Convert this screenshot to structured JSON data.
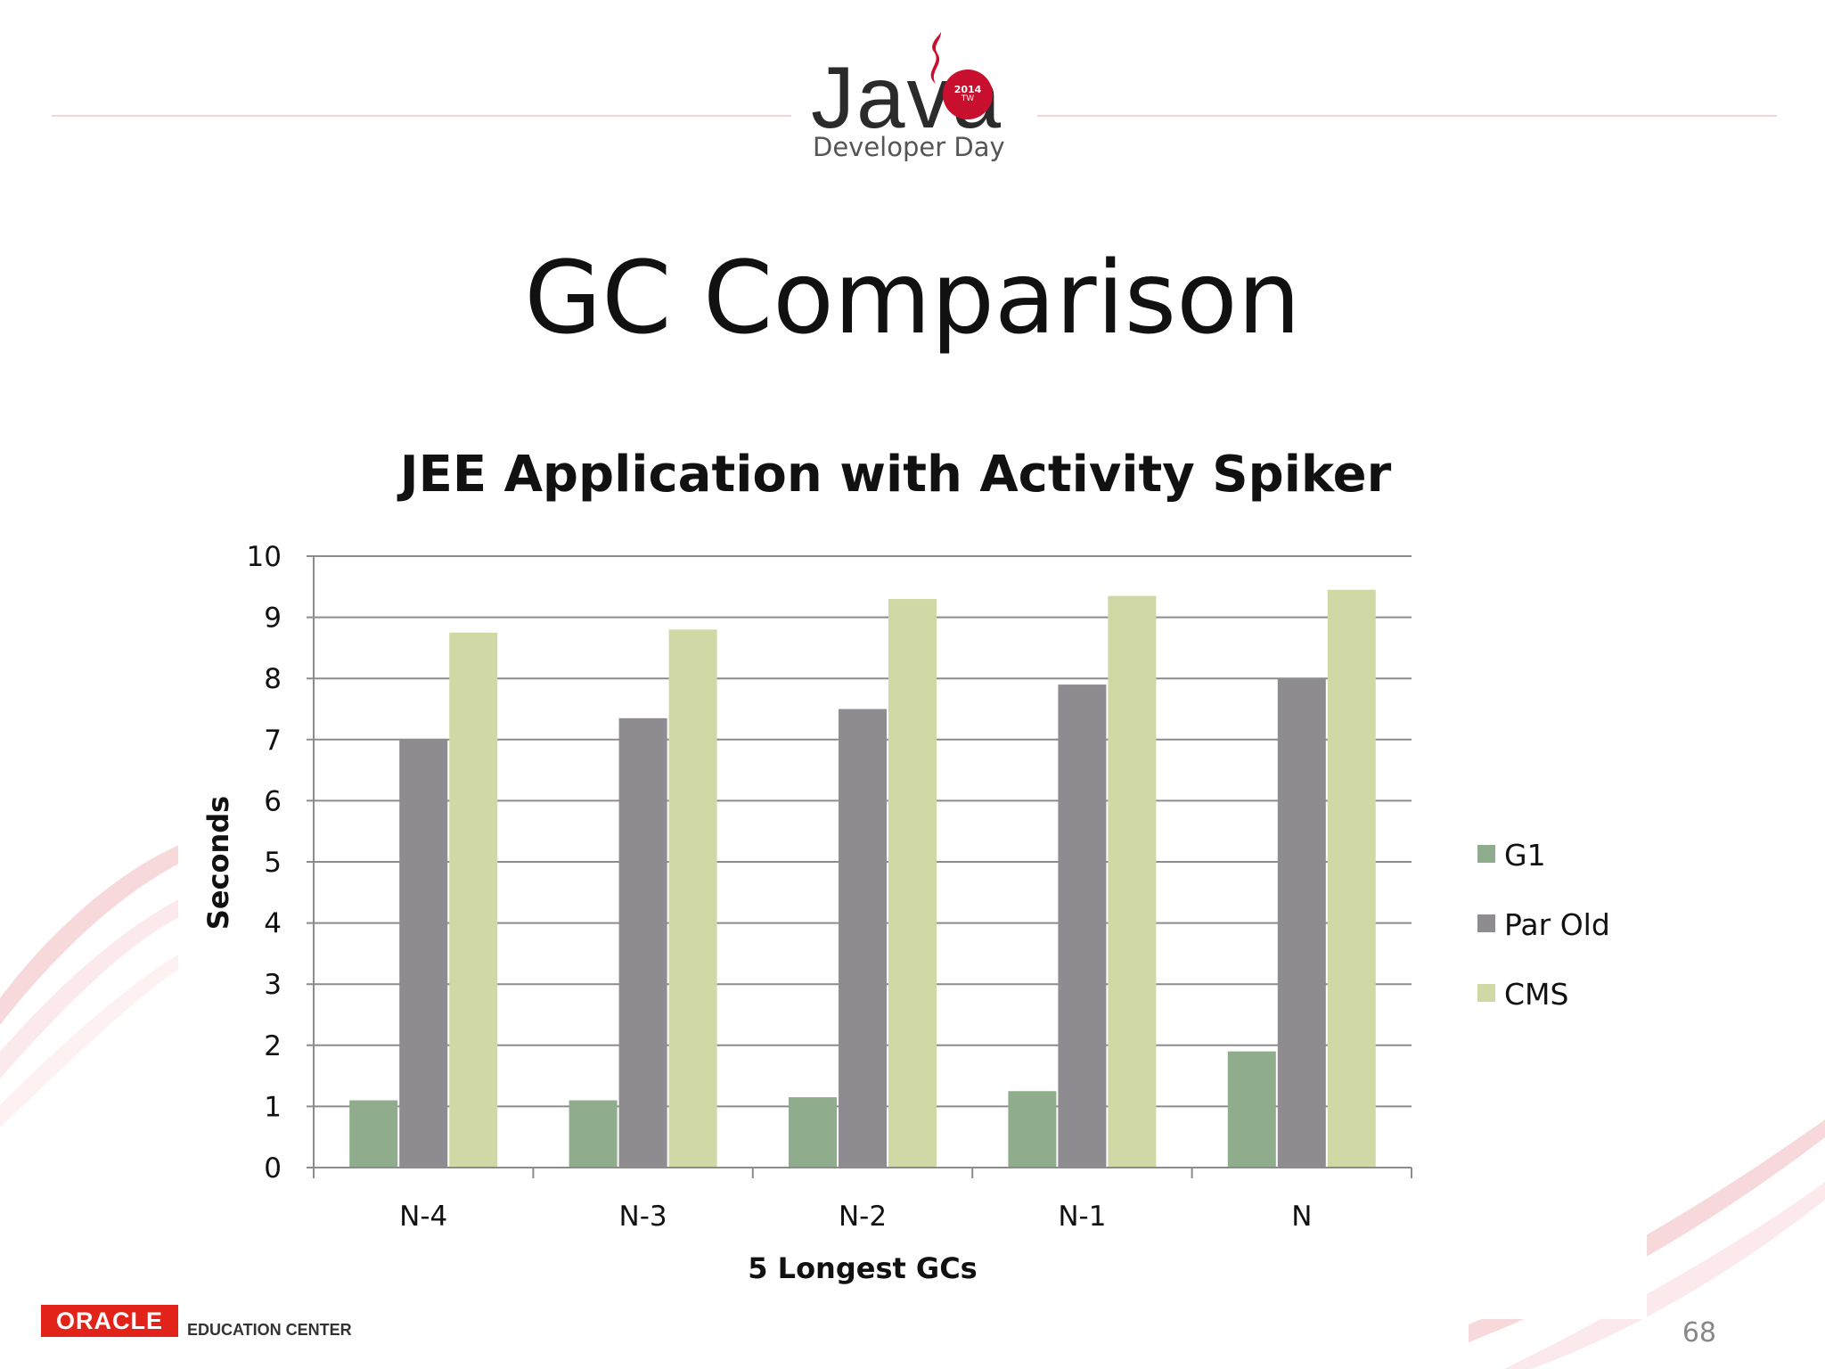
{
  "header": {
    "logo_word": "Java",
    "logo_badge_year": "2014",
    "logo_badge_region": "TW",
    "logo_subtitle": "Developer Day"
  },
  "slide": {
    "title": "GC Comparison",
    "page_number": "68"
  },
  "footer": {
    "oracle_logo": "ORACLE",
    "oracle_sub": "EDUCATION CENTER"
  },
  "colors": {
    "accent_red": "#c8102e",
    "line_pink": "#f0d4d6"
  },
  "chart_data": {
    "type": "bar",
    "title": "JEE Application with Activity Spiker",
    "xlabel": "5 Longest GCs",
    "ylabel": "Seconds",
    "categories": [
      "N-4",
      "N-3",
      "N-2",
      "N-1",
      "N"
    ],
    "ylim": [
      0,
      10
    ],
    "yticks": [
      0,
      1,
      2,
      3,
      4,
      5,
      6,
      7,
      8,
      9,
      10
    ],
    "grid": true,
    "legend_position": "right",
    "series": [
      {
        "name": "G1",
        "color": "#8fac8c",
        "values": [
          1.1,
          1.1,
          1.15,
          1.25,
          1.9
        ]
      },
      {
        "name": "Par Old",
        "color": "#8e8c90",
        "values": [
          7.0,
          7.35,
          7.5,
          7.9,
          8.0
        ]
      },
      {
        "name": "CMS",
        "color": "#d0d9a5",
        "values": [
          8.75,
          8.8,
          9.3,
          9.35,
          9.45
        ]
      }
    ]
  }
}
